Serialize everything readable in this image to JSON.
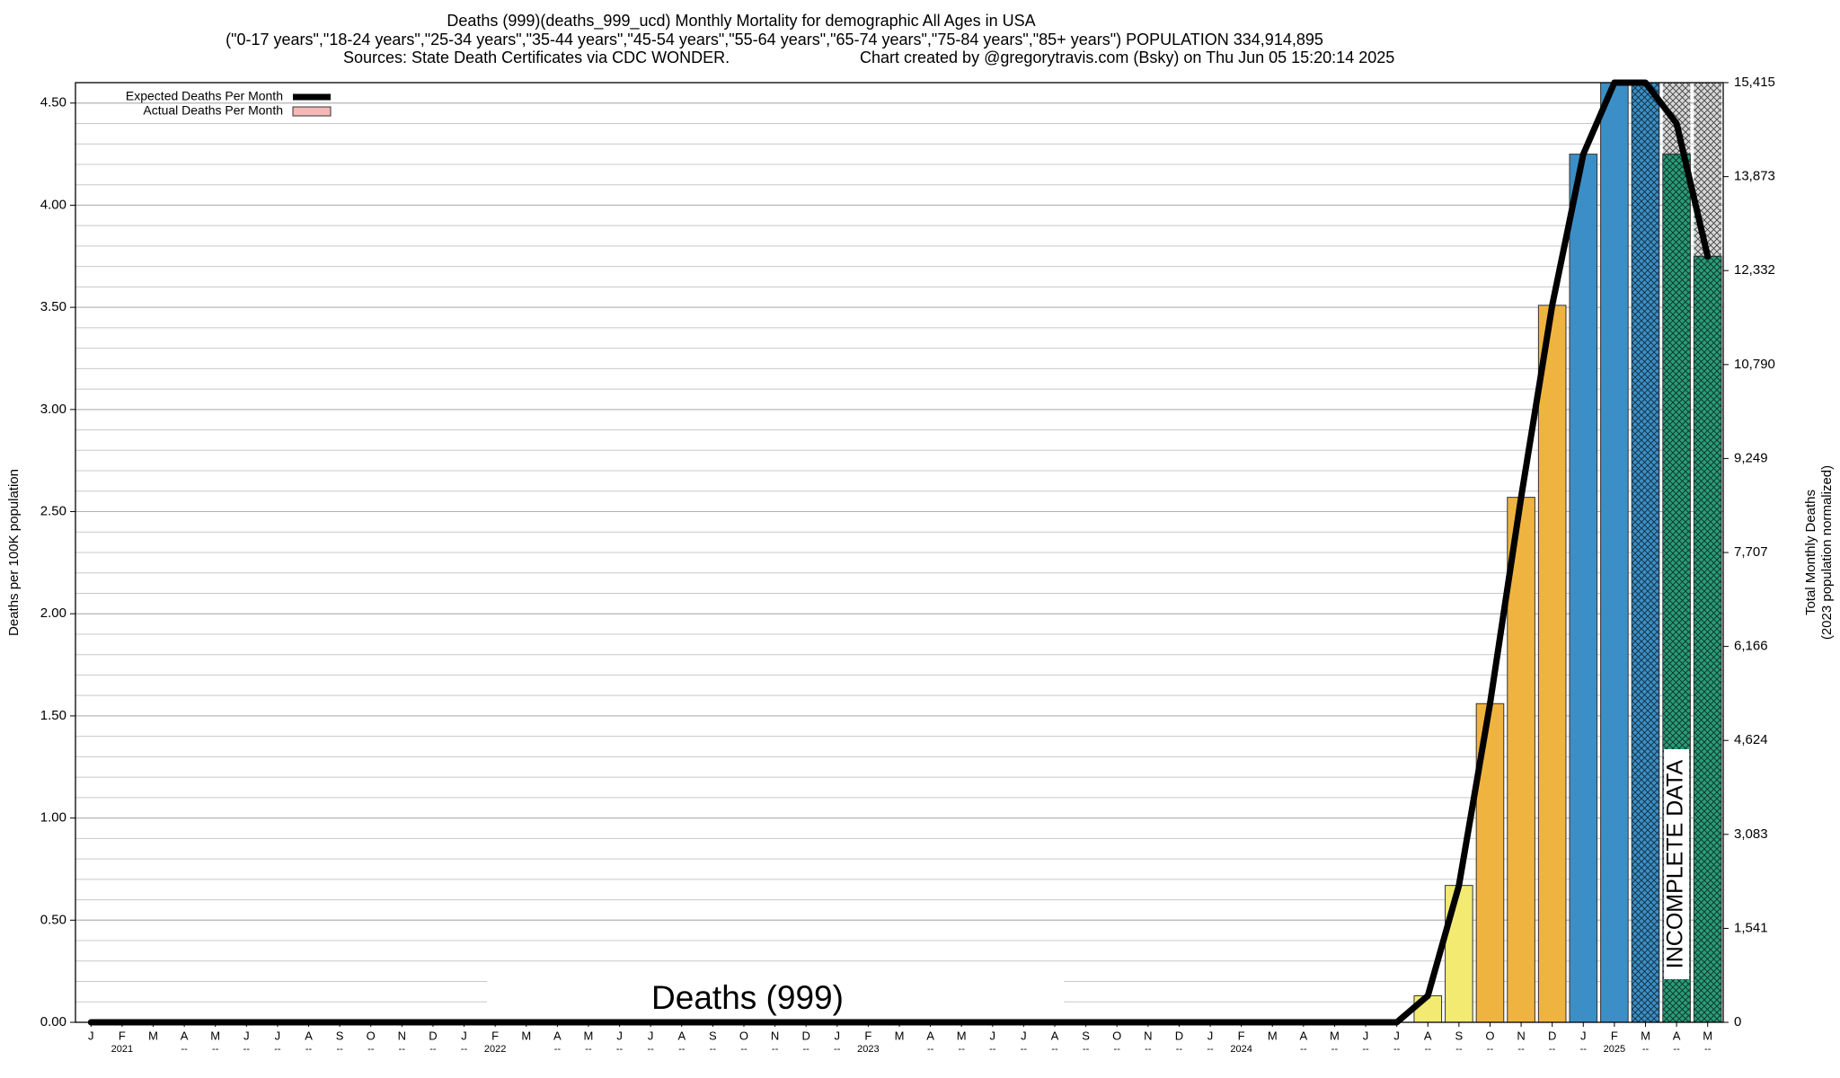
{
  "chart_data": {
    "type": "bar",
    "title": "Deaths (999)(deaths_999_ucd) Monthly Mortality for demographic All Ages in USA",
    "subtitle": "(\"0-17 years\",\"18-24 years\",\"25-34 years\",\"35-44 years\",\"45-54 years\",\"55-64 years\",\"65-74 years\",\"75-84 years\",\"85+ years\") POPULATION 334,914,895",
    "source": "Sources: State Death Certificates via CDC WONDER.",
    "credit": "Chart created by @gregorytravis.com (Bsky) on Thu Jun 05 15:20:14 2025",
    "y_label": "Deaths per 100K population",
    "y2_label": [
      "Total Monthly Deaths",
      "(2023 population normalized)"
    ],
    "watermark": "Deaths (999)",
    "annotation": "INCOMPLETE DATA",
    "categories": [
      "J",
      "F",
      "M",
      "A",
      "M",
      "J",
      "J",
      "A",
      "S",
      "O",
      "N",
      "D",
      "J",
      "F",
      "M",
      "A",
      "M",
      "J",
      "J",
      "A",
      "S",
      "O",
      "N",
      "D",
      "J",
      "F",
      "M",
      "A",
      "M",
      "J",
      "J",
      "A",
      "S",
      "O",
      "N",
      "D",
      "J",
      "F",
      "M",
      "A",
      "M",
      "J",
      "J",
      "A",
      "S",
      "O",
      "N",
      "D",
      "J",
      "F",
      "M",
      "A",
      "M"
    ],
    "sublabels": [
      null,
      "2021",
      null,
      "--",
      "--",
      "--",
      "--",
      "--",
      "--",
      "--",
      "--",
      "--",
      "--",
      "2022",
      null,
      "--",
      "--",
      "--",
      "--",
      "--",
      "--",
      "--",
      "--",
      "--",
      "--",
      "2023",
      null,
      "--",
      "--",
      "--",
      "--",
      "--",
      "--",
      "--",
      "--",
      "--",
      "--",
      "2024",
      null,
      "--",
      "--",
      "--",
      "--",
      "--",
      "--",
      "--",
      "--",
      "--",
      "--",
      "2025",
      "--",
      "--",
      "--"
    ],
    "series": [
      {
        "name": "Expected Deaths Per Month",
        "type": "line",
        "color": "#000000",
        "values": [
          0,
          0,
          0,
          0,
          0,
          0,
          0,
          0,
          0,
          0,
          0,
          0,
          0,
          0,
          0,
          0,
          0,
          0,
          0,
          0,
          0,
          0,
          0,
          0,
          0,
          0,
          0,
          0,
          0,
          0,
          0,
          0,
          0,
          0,
          0,
          0,
          0,
          0,
          0,
          0,
          0,
          0,
          0,
          0.13,
          0.67,
          1.56,
          2.57,
          3.51,
          4.25,
          4.6,
          4.6,
          4.4,
          3.75
        ]
      },
      {
        "name": "Actual Deaths Per Month",
        "type": "bar",
        "color": "#f4b8b8",
        "values": [
          null,
          null,
          null,
          null,
          null,
          null,
          null,
          null,
          null,
          null,
          null,
          null,
          null,
          null,
          null,
          null,
          null,
          null,
          null,
          null,
          null,
          null,
          null,
          null,
          null,
          null,
          null,
          null,
          null,
          null,
          null,
          null,
          null,
          null,
          null,
          null,
          null,
          null,
          null,
          null,
          null,
          null,
          null,
          0.13,
          0.67,
          1.56,
          2.57,
          3.51,
          4.25,
          4.6,
          4.6,
          4.25,
          3.75
        ],
        "colors": [
          null,
          null,
          null,
          null,
          null,
          null,
          null,
          null,
          null,
          null,
          null,
          null,
          null,
          null,
          null,
          null,
          null,
          null,
          null,
          null,
          null,
          null,
          null,
          null,
          null,
          null,
          null,
          null,
          null,
          null,
          null,
          null,
          null,
          null,
          null,
          null,
          null,
          null,
          null,
          null,
          null,
          null,
          null,
          "#f3ea72",
          "#f3ea72",
          "#efb43f",
          "#efb43f",
          "#efb43f",
          "#3b8fc6",
          "#3b8fc6",
          "#3b8fc6",
          "#2a9d78",
          "#2a9d78"
        ],
        "hatch": [
          false,
          false,
          false,
          false,
          false,
          false,
          false,
          false,
          false,
          false,
          false,
          false,
          false,
          false,
          false,
          false,
          false,
          false,
          false,
          false,
          false,
          false,
          false,
          false,
          false,
          false,
          false,
          false,
          false,
          false,
          false,
          false,
          false,
          false,
          false,
          false,
          false,
          false,
          false,
          false,
          false,
          false,
          false,
          false,
          false,
          false,
          false,
          false,
          false,
          false,
          true,
          true,
          true
        ]
      }
    ],
    "ylim": [
      0,
      4.6
    ],
    "yticks": [
      {
        "value": 0,
        "label": "0.00"
      },
      {
        "value": 0.5,
        "label": "0.50"
      },
      {
        "value": 1,
        "label": "1.00"
      },
      {
        "value": 1.5,
        "label": "1.50"
      },
      {
        "value": 2,
        "label": "2.00"
      },
      {
        "value": 2.5,
        "label": "2.50"
      },
      {
        "value": 3,
        "label": "3.00"
      },
      {
        "value": 3.5,
        "label": "3.50"
      },
      {
        "value": 4,
        "label": "4.00"
      },
      {
        "value": 4.5,
        "label": "4.50"
      }
    ],
    "y2lim": [
      0,
      15415
    ],
    "y2ticks": [
      0,
      {
        "value": 1541,
        "label": "1,541"
      },
      {
        "value": 3083,
        "label": "3,083"
      },
      {
        "value": 4624,
        "label": "4,624"
      },
      {
        "value": 6166,
        "label": "6,166"
      },
      {
        "value": 7707,
        "label": "7,707"
      },
      {
        "value": 9249,
        "label": "9,249"
      },
      {
        "value": 10790,
        "label": "10,790"
      },
      {
        "value": 12332,
        "label": "12,332"
      },
      {
        "value": 13873,
        "label": "13,873"
      },
      {
        "value": 15415,
        "label": "15,415"
      }
    ],
    "grid": true,
    "legend": "top-left"
  }
}
